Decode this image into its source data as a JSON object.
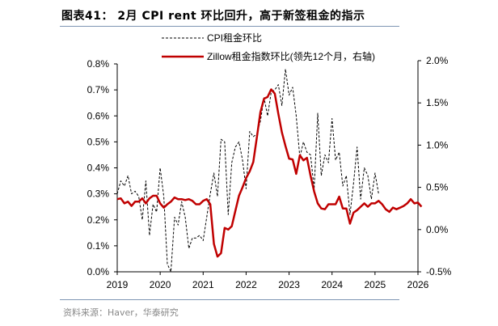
{
  "title": "图表41： 2月 CPI rent 环比回升，高于新签租金的指示",
  "source": "资料来源：Haver，华泰研究",
  "chart_data": {
    "type": "line",
    "title": "图表41： 2月 CPI rent 环比回升，高于新签租金的指示",
    "x_ticks": [
      "2019",
      "2020",
      "2021",
      "2022",
      "2023",
      "2024",
      "2025",
      "2026"
    ],
    "x_range": [
      2019,
      2026
    ],
    "left_axis": {
      "ticks": [
        "0.0%",
        "0.1%",
        "0.2%",
        "0.3%",
        "0.4%",
        "0.5%",
        "0.6%",
        "0.7%",
        "0.8%"
      ],
      "range": [
        0,
        0.8
      ]
    },
    "right_axis": {
      "ticks": [
        "-0.5%",
        "0.0%",
        "0.5%",
        "1.0%",
        "1.5%",
        "2.0%"
      ],
      "range": [
        -0.5,
        2.0
      ]
    },
    "legend": "top-center",
    "series": [
      {
        "name": "CPI租金环比",
        "axis": "left",
        "style": "dashed",
        "color": "#000000",
        "start": "2019-01",
        "values": [
          0.3,
          0.35,
          0.33,
          0.37,
          0.3,
          0.31,
          0.29,
          0.2,
          0.35,
          0.14,
          0.26,
          0.23,
          0.4,
          0.29,
          0.03,
          0.0,
          0.21,
          0.18,
          0.27,
          0.21,
          0.09,
          0.13,
          0.13,
          0.14,
          0.12,
          0.21,
          0.3,
          0.38,
          0.29,
          0.51,
          0.5,
          0.22,
          0.42,
          0.48,
          0.5,
          0.43,
          0.32,
          0.54,
          0.52,
          0.53,
          0.58,
          0.67,
          0.6,
          0.69,
          0.7,
          0.72,
          0.64,
          0.78,
          0.68,
          0.71,
          0.6,
          0.44,
          0.5,
          0.46,
          0.45,
          0.32,
          0.61,
          0.37,
          0.45,
          0.42,
          0.59,
          0.43,
          0.46,
          0.33,
          0.37,
          0.22,
          0.34,
          0.48,
          0.28,
          0.4,
          0.37,
          0.28,
          0.38,
          0.3
        ]
      },
      {
        "name": "Zillow租金指数环比(领先12个月，右轴)",
        "axis": "right",
        "style": "solid",
        "color": "#c00000",
        "start": "2019-01",
        "values": [
          0.36,
          0.37,
          0.31,
          0.33,
          0.28,
          0.33,
          0.33,
          0.37,
          0.31,
          0.37,
          0.4,
          0.4,
          0.31,
          0.26,
          0.3,
          0.33,
          0.38,
          0.36,
          0.36,
          0.35,
          0.36,
          0.34,
          0.3,
          0.3,
          0.34,
          0.36,
          0.3,
          -0.17,
          -0.32,
          -0.28,
          0.02,
          0.0,
          0.04,
          0.22,
          0.4,
          0.5,
          0.61,
          0.69,
          0.8,
          1.09,
          1.39,
          1.55,
          1.57,
          1.66,
          1.61,
          1.37,
          1.15,
          0.99,
          0.84,
          0.83,
          0.66,
          0.88,
          0.82,
          0.85,
          0.64,
          0.45,
          0.31,
          0.25,
          0.24,
          0.3,
          0.3,
          0.3,
          0.39,
          0.25,
          0.25,
          0.07,
          0.2,
          0.23,
          0.27,
          0.31,
          0.27,
          0.31,
          0.31,
          0.34,
          0.3,
          0.24,
          0.21,
          0.26,
          0.24,
          0.26,
          0.28,
          0.31,
          0.36,
          0.31,
          0.32,
          0.27
        ]
      }
    ]
  }
}
